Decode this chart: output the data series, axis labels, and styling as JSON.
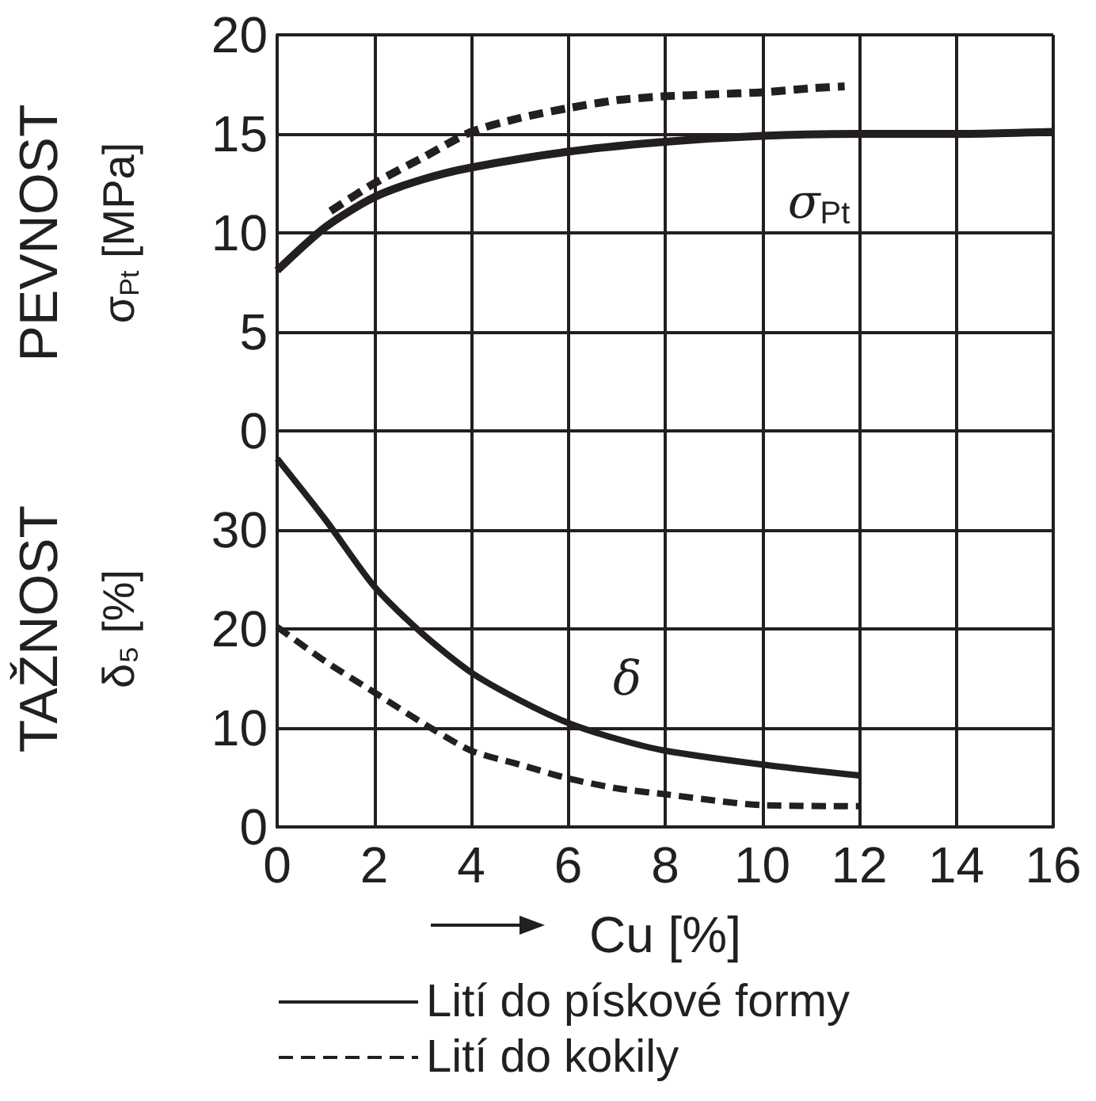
{
  "chart_data": [
    {
      "type": "line",
      "ylabel": "PEVNOST\nσ$_{Pt}$ [MPa]",
      "xlim": [
        0,
        16
      ],
      "xticks": [
        0,
        2,
        4,
        6,
        8,
        10,
        12,
        14,
        16
      ],
      "ylim": [
        0,
        20
      ],
      "yticks": [
        0,
        5,
        10,
        15,
        20
      ],
      "grid": true,
      "tick_labels": "y",
      "marker": "none",
      "annotations": [
        "σ$_{Pt}$"
      ],
      "series": [
        {
          "color": "#231f20",
          "line_style": "solid",
          "x": [
            0,
            1,
            2,
            3,
            4,
            6,
            8,
            10,
            12,
            14,
            16
          ],
          "values": [
            8.1,
            10.3,
            11.8,
            12.7,
            13.3,
            14.1,
            14.6,
            14.9,
            15.0,
            15.0,
            15.1
          ]
        },
        {
          "color": "#231f20",
          "line_style": "dashed",
          "x": [
            1.1,
            2,
            3,
            4,
            5,
            6,
            7,
            8,
            9,
            10,
            11,
            11.7
          ],
          "values": [
            11.1,
            12.5,
            13.8,
            15.1,
            15.8,
            16.3,
            16.7,
            16.9,
            17.0,
            17.1,
            17.3,
            17.4
          ]
        }
      ]
    },
    {
      "type": "line",
      "ylabel": "TAŽNOST\nδ₅ [%]",
      "xlabel": "Cu [%]",
      "xlim": [
        0,
        16
      ],
      "xticks": [
        0,
        2,
        4,
        6,
        8,
        10,
        12,
        14,
        16
      ],
      "ylim": [
        0,
        40
      ],
      "yticks": [
        0,
        10,
        20,
        30
      ],
      "grid": true,
      "legend": "bottom",
      "marker": "none",
      "annotations": [
        "δ"
      ],
      "series": [
        {
          "name": "Lití do pískové formy",
          "color": "#231f20",
          "line_style": "solid",
          "x": [
            0,
            1,
            2,
            3,
            4,
            5,
            6,
            7,
            8,
            10,
            12
          ],
          "values": [
            37.2,
            31.0,
            24.3,
            19.5,
            15.6,
            12.8,
            10.5,
            8.9,
            7.7,
            6.3,
            5.2
          ]
        },
        {
          "name": "Lití do kokily",
          "color": "#231f20",
          "line_style": "dashed",
          "x": [
            0,
            1,
            2,
            3,
            4,
            5,
            6,
            7,
            8,
            10,
            12
          ],
          "values": [
            20.2,
            16.7,
            13.6,
            10.5,
            7.7,
            6.3,
            4.9,
            3.9,
            3.3,
            2.2,
            2.1
          ]
        }
      ]
    }
  ]
}
